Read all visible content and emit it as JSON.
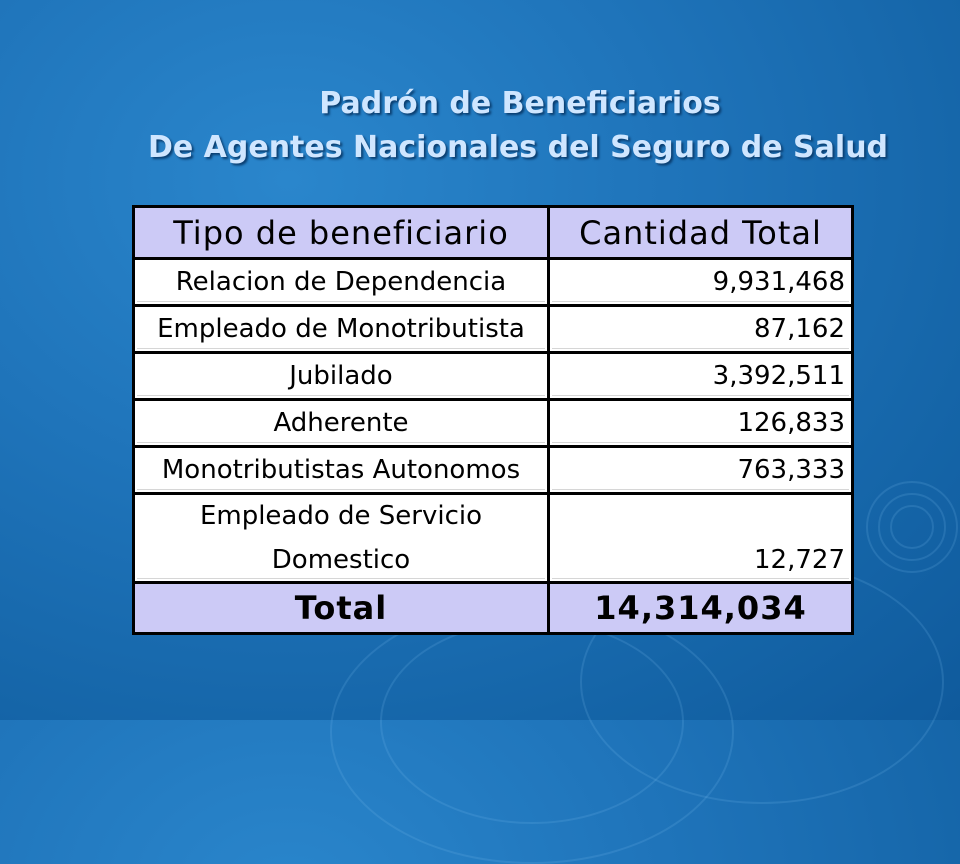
{
  "title": {
    "line1": "Padrón de Beneficiarios",
    "line2": "De Agentes Nacionales del Seguro de Salud"
  },
  "table": {
    "headers": [
      "Tipo de beneficiario",
      "Cantidad Total"
    ],
    "rows": [
      {
        "tipo": "Relacion de Dependencia",
        "cantidad": "9,931,468"
      },
      {
        "tipo": "Empleado de Monotributista",
        "cantidad": "87,162"
      },
      {
        "tipo": "Jubilado",
        "cantidad": "3,392,511"
      },
      {
        "tipo": "Adherente",
        "cantidad": "126,833"
      },
      {
        "tipo": "Monotributistas Autonomos",
        "cantidad": "763,333"
      },
      {
        "tipo_line1": "Empleado de Servicio",
        "tipo_line2": "Domestico",
        "cantidad": "12,727"
      }
    ],
    "total": {
      "label": "Total",
      "value": "14,314,034"
    }
  },
  "colors": {
    "background": "#1f74ba",
    "title_text": "#cfe6ff",
    "header_fill": "#cccaf6",
    "cell_fill": "#ffffff",
    "border": "#000000"
  }
}
